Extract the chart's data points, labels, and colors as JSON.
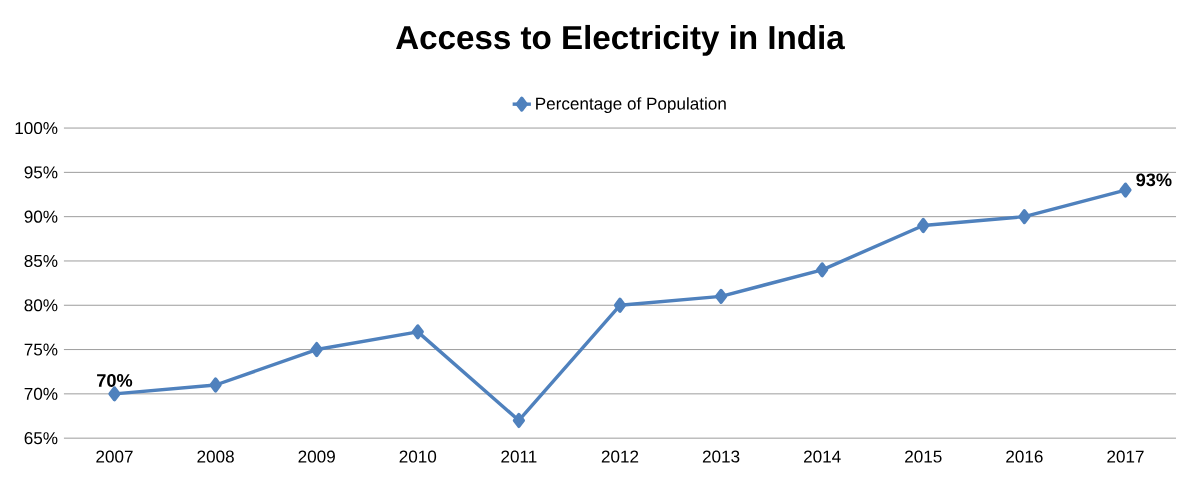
{
  "chart_data": {
    "type": "line",
    "title": "Access to Electricity in India",
    "categories": [
      "2007",
      "2008",
      "2009",
      "2010",
      "2011",
      "2012",
      "2013",
      "2014",
      "2015",
      "2016",
      "2017"
    ],
    "series": [
      {
        "name": "Percentage of Population",
        "color": "#4f81bd",
        "values": [
          70,
          71,
          75,
          77,
          67,
          80,
          81,
          84,
          89,
          90,
          93
        ],
        "value_labels": [
          "70%",
          null,
          null,
          null,
          null,
          null,
          null,
          null,
          null,
          null,
          "93%"
        ]
      }
    ],
    "ylim": [
      65,
      100
    ],
    "yticks": [
      {
        "value": 65,
        "label": "65%"
      },
      {
        "value": 70,
        "label": "70%"
      },
      {
        "value": 75,
        "label": "75%"
      },
      {
        "value": 80,
        "label": "80%"
      },
      {
        "value": 85,
        "label": "85%"
      },
      {
        "value": 90,
        "label": "90%"
      },
      {
        "value": 95,
        "label": "95%"
      },
      {
        "value": 100,
        "label": "100%"
      }
    ],
    "grid": "y",
    "legend": "top",
    "marker": "diamond",
    "line_style": "solid"
  }
}
